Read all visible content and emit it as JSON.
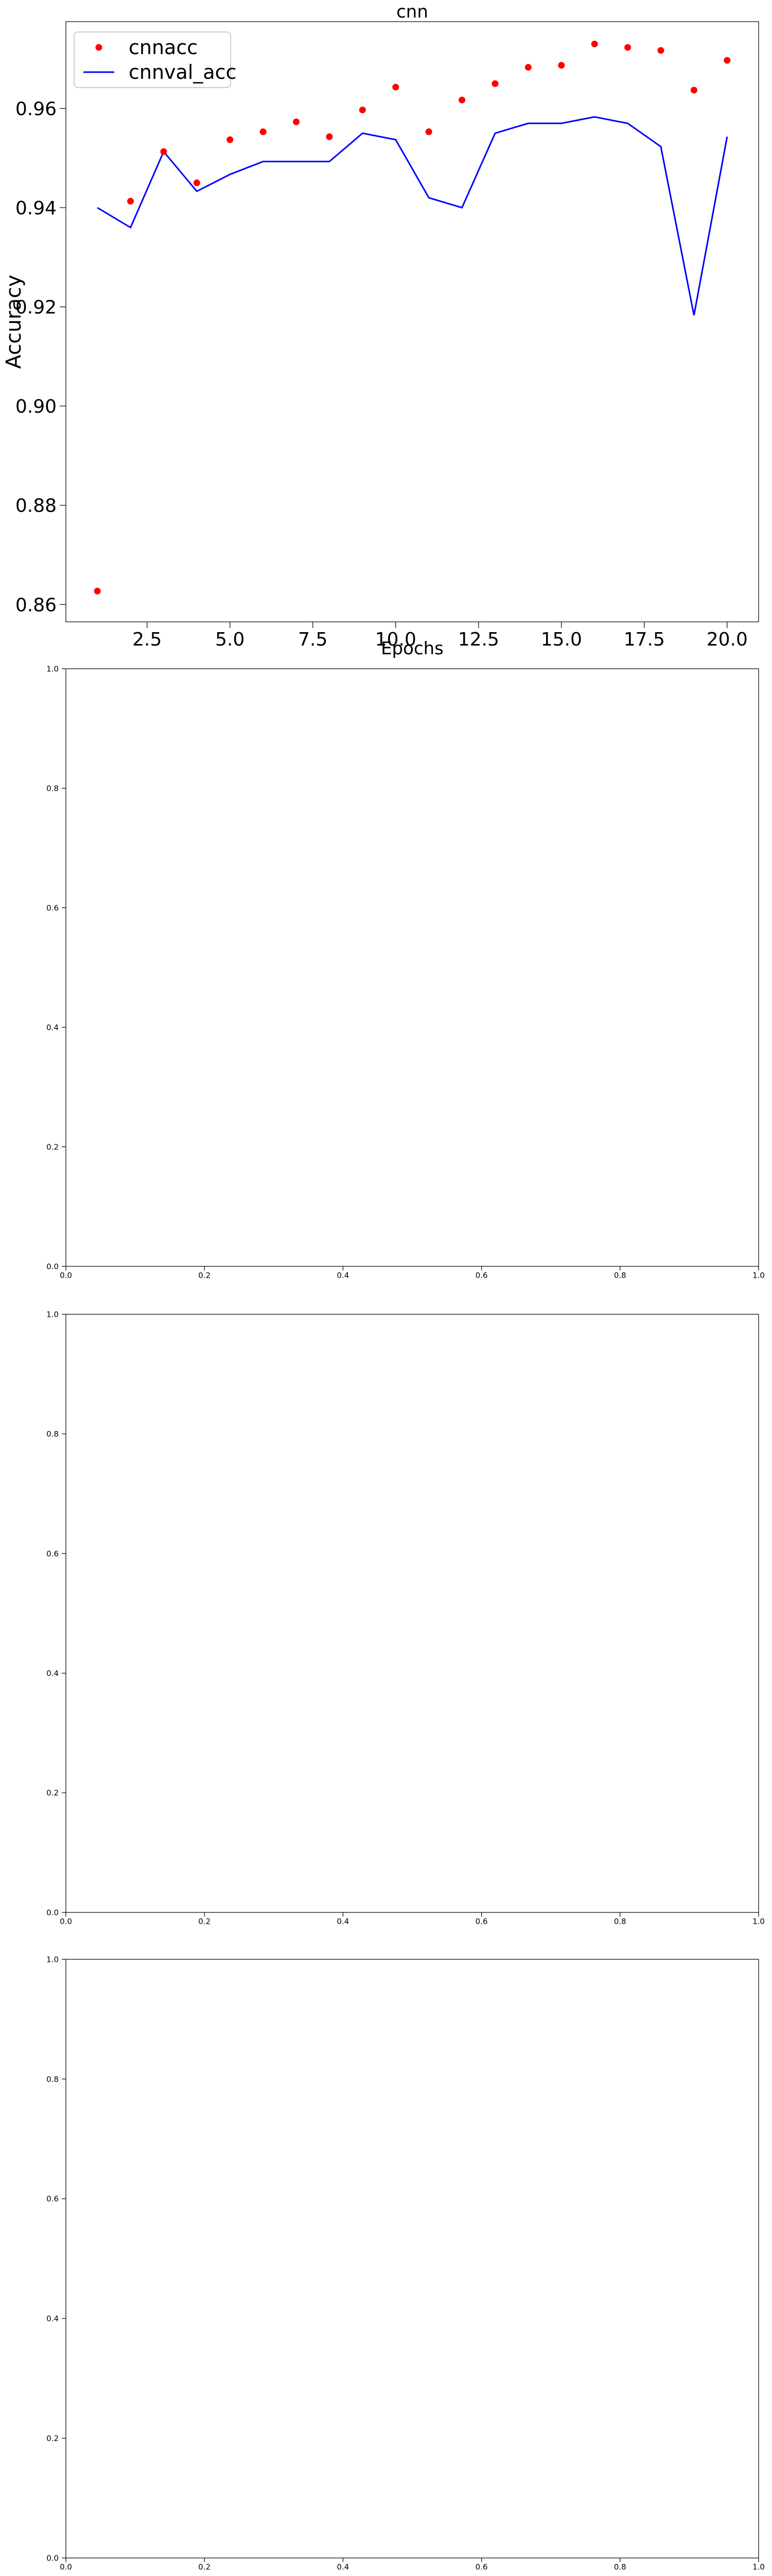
{
  "colors": {
    "scatter": "#ff0000",
    "line": "#0000ff",
    "axes": "#000000",
    "background": "#ffffff"
  },
  "chart_data": [
    {
      "type": "line",
      "title": "cnn",
      "xlabel": "Epochs",
      "ylabel": "Accuracy",
      "xlim": [
        0.05,
        20.95
      ],
      "ylim": [
        0.8565,
        0.9775
      ],
      "xticks": [
        2.5,
        5.0,
        7.5,
        10.0,
        12.5,
        15.0,
        17.5,
        20.0
      ],
      "xtick_labels": [
        "2.5",
        "5.0",
        "7.5",
        "10.0",
        "12.5",
        "15.0",
        "17.5",
        "20.0"
      ],
      "yticks": [
        0.86,
        0.88,
        0.9,
        0.92,
        0.94,
        0.96
      ],
      "ytick_labels": [
        "0.86",
        "0.88",
        "0.90",
        "0.92",
        "0.94",
        "0.96"
      ],
      "legend_position": "upper-left",
      "x": [
        1,
        2,
        3,
        4,
        5,
        6,
        7,
        8,
        9,
        10,
        11,
        12,
        13,
        14,
        15,
        16,
        17,
        18,
        19,
        20
      ],
      "series": [
        {
          "name": "cnnacc",
          "style": "scatter",
          "color": "#ff0000",
          "values": [
            0.8627,
            0.9413,
            0.9513,
            0.945,
            0.9537,
            0.9553,
            0.9573,
            0.9543,
            0.9597,
            0.9643,
            0.9553,
            0.9617,
            0.965,
            0.9683,
            0.9687,
            0.973,
            0.9723,
            0.9717,
            0.9637,
            0.9697
          ]
        },
        {
          "name": "cnnval_acc",
          "style": "line",
          "color": "#0000ff",
          "values": [
            0.94,
            0.936,
            0.9513,
            0.9433,
            0.9467,
            0.9493,
            0.9493,
            0.9493,
            0.955,
            0.9537,
            0.942,
            0.94,
            0.955,
            0.957,
            0.957,
            0.9583,
            0.957,
            0.9523,
            0.9183,
            0.9543
          ]
        }
      ]
    },
    {
      "type": "line",
      "title": "",
      "xlabel": "",
      "ylabel": "",
      "xlim": [
        0,
        1
      ],
      "ylim": [
        0,
        1
      ],
      "xticks": [
        0.0,
        0.2,
        0.4,
        0.6,
        0.8,
        1.0
      ],
      "xtick_labels": [
        "0.0",
        "0.2",
        "0.4",
        "0.6",
        "0.8",
        "1.0"
      ],
      "yticks": [
        0.0,
        0.2,
        0.4,
        0.6,
        0.8,
        1.0
      ],
      "ytick_labels": [
        "0.0",
        "0.2",
        "0.4",
        "0.6",
        "0.8",
        "1.0"
      ],
      "series": []
    },
    {
      "type": "line",
      "title": "",
      "xlabel": "",
      "ylabel": "",
      "xlim": [
        0,
        1
      ],
      "ylim": [
        0,
        1
      ],
      "xticks": [
        0.0,
        0.2,
        0.4,
        0.6,
        0.8,
        1.0
      ],
      "xtick_labels": [
        "0.0",
        "0.2",
        "0.4",
        "0.6",
        "0.8",
        "1.0"
      ],
      "yticks": [
        0.0,
        0.2,
        0.4,
        0.6,
        0.8,
        1.0
      ],
      "ytick_labels": [
        "0.0",
        "0.2",
        "0.4",
        "0.6",
        "0.8",
        "1.0"
      ],
      "series": []
    },
    {
      "type": "line",
      "title": "",
      "xlabel": "",
      "ylabel": "",
      "xlim": [
        0,
        1
      ],
      "ylim": [
        0,
        1
      ],
      "xticks": [
        0.0,
        0.2,
        0.4,
        0.6,
        0.8,
        1.0
      ],
      "xtick_labels": [
        "0.0",
        "0.2",
        "0.4",
        "0.6",
        "0.8",
        "1.0"
      ],
      "yticks": [
        0.0,
        0.2,
        0.4,
        0.6,
        0.8,
        1.0
      ],
      "ytick_labels": [
        "0.0",
        "0.2",
        "0.4",
        "0.6",
        "0.8",
        "1.0"
      ],
      "series": []
    }
  ]
}
